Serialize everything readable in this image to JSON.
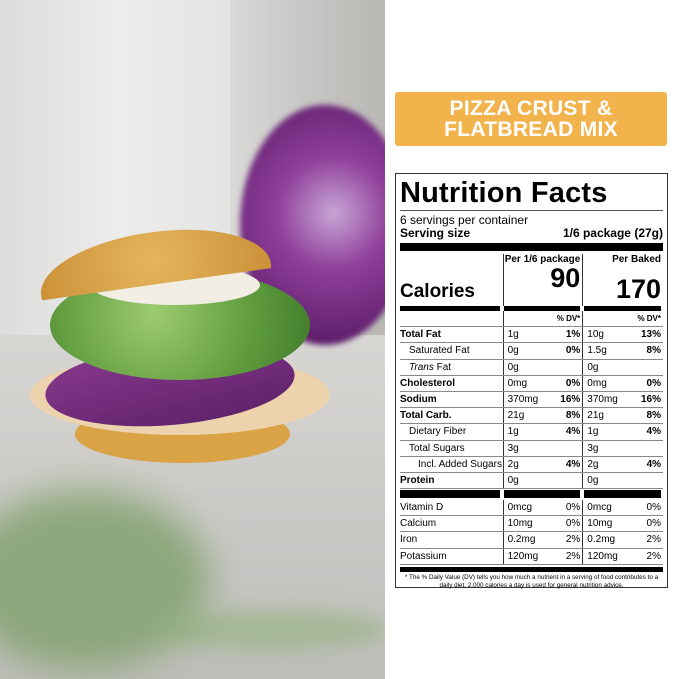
{
  "banner": {
    "line1": "PIZZA CRUST &",
    "line2": "FLATBREAD MIX",
    "color": "#f2b34c"
  },
  "nutrition": {
    "title": "Nutrition Facts",
    "servings": "6 servings per container",
    "serving_size_label": "Serving size",
    "serving_size_value": "1/6 package (27g)",
    "calories_label": "Calories",
    "col1_header": "Per 1/6 package",
    "col2_header": "Per Baked",
    "col1_calories": "90",
    "col2_calories": "170",
    "dv_header": "% DV*",
    "rows": [
      {
        "name": "Total Fat",
        "bold": true,
        "indent": 0,
        "a1": "1g",
        "p1": "1%",
        "a2": "10g",
        "p2": "13%"
      },
      {
        "name": "Saturated Fat",
        "indent": 1,
        "a1": "0g",
        "p1": "0%",
        "a2": "1.5g",
        "p2": "8%"
      },
      {
        "name": "Trans Fat",
        "italicPrefix": "Trans",
        "indent": 1,
        "a1": "0g",
        "p1": "",
        "a2": "0g",
        "p2": ""
      },
      {
        "name": "Cholesterol",
        "bold": true,
        "indent": 0,
        "a1": "0mg",
        "p1": "0%",
        "a2": "0mg",
        "p2": "0%"
      },
      {
        "name": "Sodium",
        "bold": true,
        "indent": 0,
        "a1": "370mg",
        "p1": "16%",
        "a2": "370mg",
        "p2": "16%"
      },
      {
        "name": "Total Carb.",
        "bold": true,
        "indent": 0,
        "a1": "21g",
        "p1": "8%",
        "a2": "21g",
        "p2": "8%"
      },
      {
        "name": "Dietary Fiber",
        "indent": 1,
        "a1": "1g",
        "p1": "4%",
        "a2": "1g",
        "p2": "4%"
      },
      {
        "name": "Total Sugars",
        "indent": 1,
        "a1": "3g",
        "p1": "",
        "a2": "3g",
        "p2": ""
      },
      {
        "name": "Incl. Added Sugars",
        "indent": 2,
        "a1": "2g",
        "p1": "4%",
        "a2": "2g",
        "p2": "4%"
      },
      {
        "name": "Protein",
        "bold": true,
        "indent": 0,
        "a1": "0g",
        "p1": "",
        "a2": "0g",
        "p2": ""
      }
    ],
    "vitamins": [
      {
        "name": "Vitamin D",
        "a1": "0mcg",
        "p1": "0%",
        "a2": "0mcg",
        "p2": "0%"
      },
      {
        "name": "Calcium",
        "a1": "10mg",
        "p1": "0%",
        "a2": "10mg",
        "p2": "0%"
      },
      {
        "name": "Iron",
        "a1": "0.2mg",
        "p1": "2%",
        "a2": "0.2mg",
        "p2": "2%"
      },
      {
        "name": "Potassium",
        "a1": "120mg",
        "p1": "2%",
        "a2": "120mg",
        "p2": "2%"
      }
    ],
    "footnote": "* The % Daily Value (DV) tells you how much a nutrient in a serving of food contributes to a daily diet. 2,000 calories a day is used for general nutrition advice."
  }
}
